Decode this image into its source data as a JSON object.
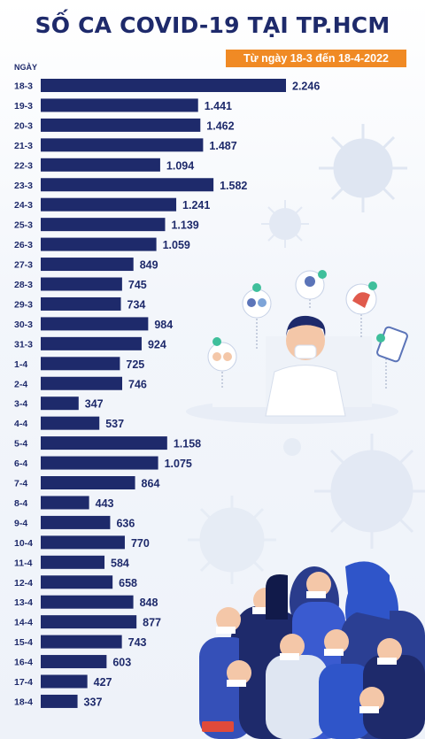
{
  "chart_data": {
    "type": "bar",
    "orientation": "horizontal",
    "title": "SỐ CA COVID-19 TẠI TP.HCM",
    "subtitle": "Từ ngày 18-3 đến 18-4-2022",
    "ylabel": "NGÀY",
    "xlim": [
      0,
      2500
    ],
    "grid": false,
    "categories": [
      "18-3",
      "19-3",
      "20-3",
      "21-3",
      "22-3",
      "23-3",
      "24-3",
      "25-3",
      "26-3",
      "27-3",
      "28-3",
      "29-3",
      "30-3",
      "31-3",
      "1-4",
      "2-4",
      "3-4",
      "4-4",
      "5-4",
      "6-4",
      "7-4",
      "8-4",
      "9-4",
      "10-4",
      "11-4",
      "12-4",
      "13-4",
      "14-4",
      "15-4",
      "16-4",
      "17-4",
      "18-4"
    ],
    "values": [
      2246,
      1441,
      1462,
      1487,
      1094,
      1582,
      1241,
      1139,
      1059,
      849,
      745,
      734,
      984,
      924,
      725,
      746,
      347,
      537,
      1158,
      1075,
      864,
      443,
      636,
      770,
      584,
      658,
      848,
      877,
      743,
      603,
      427,
      337
    ],
    "value_labels": [
      "2.246",
      "1.441",
      "1.462",
      "1.487",
      "1.094",
      "1.582",
      "1.241",
      "1.139",
      "1.059",
      "849",
      "745",
      "734",
      "984",
      "924",
      "725",
      "746",
      "347",
      "537",
      "1.158",
      "1.075",
      "864",
      "443",
      "636",
      "770",
      "584",
      "658",
      "848",
      "877",
      "743",
      "603",
      "427",
      "337"
    ],
    "colors": {
      "bar": "#1e2a6b",
      "accent": "#f08a24"
    }
  }
}
